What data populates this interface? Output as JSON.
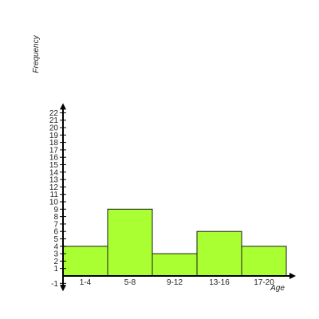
{
  "chart_data": {
    "type": "bar",
    "categories": [
      "1-4",
      "5-8",
      "9-12",
      "13-16",
      "17-20"
    ],
    "values": [
      4,
      9,
      3,
      6,
      4
    ],
    "title": "",
    "xlabel": "Age",
    "ylabel": "Frequency",
    "ylim": [
      -1,
      22
    ],
    "yticks": [
      "-1",
      "1",
      "2",
      "3",
      "4",
      "5",
      "6",
      "7",
      "8",
      "9",
      "10",
      "11",
      "12",
      "13",
      "14",
      "15",
      "16",
      "17",
      "18",
      "19",
      "20",
      "21",
      "22"
    ],
    "grid": false,
    "legend": "none",
    "bar_color": "#aaff33",
    "bar_edge_color": "#1a1a1a",
    "axis_color": "#000000"
  }
}
